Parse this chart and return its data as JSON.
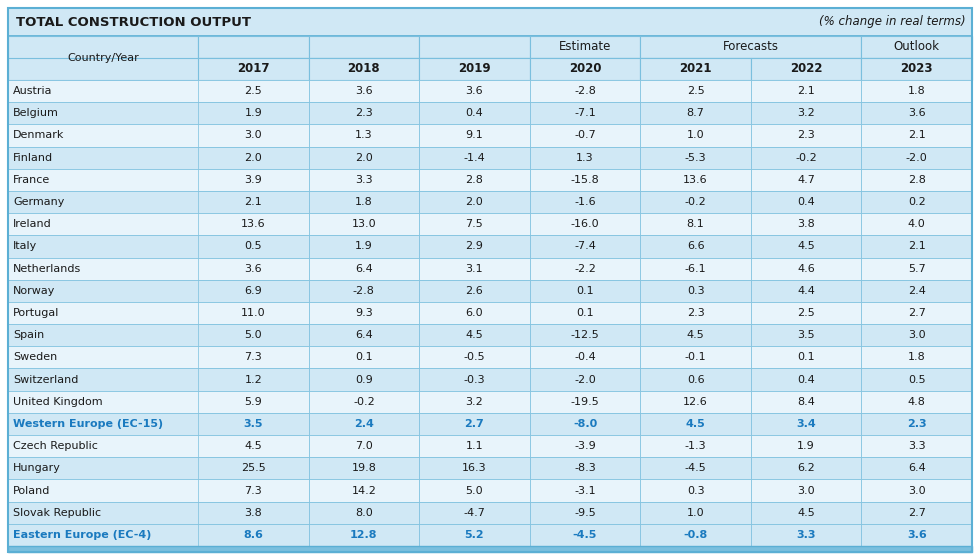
{
  "title_left": "TOTAL CONSTRUCTION OUTPUT",
  "title_right": "(% change in real terms)",
  "years": [
    "2017",
    "2018",
    "2019",
    "2020",
    "2021",
    "2022",
    "2023"
  ],
  "rows": [
    [
      "Austria",
      "2.5",
      "3.6",
      "3.6",
      "-2.8",
      "2.5",
      "2.1",
      "1.8"
    ],
    [
      "Belgium",
      "1.9",
      "2.3",
      "0.4",
      "-7.1",
      "8.7",
      "3.2",
      "3.6"
    ],
    [
      "Denmark",
      "3.0",
      "1.3",
      "9.1",
      "-0.7",
      "1.0",
      "2.3",
      "2.1"
    ],
    [
      "Finland",
      "2.0",
      "2.0",
      "-1.4",
      "1.3",
      "-5.3",
      "-0.2",
      "-2.0"
    ],
    [
      "France",
      "3.9",
      "3.3",
      "2.8",
      "-15.8",
      "13.6",
      "4.7",
      "2.8"
    ],
    [
      "Germany",
      "2.1",
      "1.8",
      "2.0",
      "-1.6",
      "-0.2",
      "0.4",
      "0.2"
    ],
    [
      "Ireland",
      "13.6",
      "13.0",
      "7.5",
      "-16.0",
      "8.1",
      "3.8",
      "4.0"
    ],
    [
      "Italy",
      "0.5",
      "1.9",
      "2.9",
      "-7.4",
      "6.6",
      "4.5",
      "2.1"
    ],
    [
      "Netherlands",
      "3.6",
      "6.4",
      "3.1",
      "-2.2",
      "-6.1",
      "4.6",
      "5.7"
    ],
    [
      "Norway",
      "6.9",
      "-2.8",
      "2.6",
      "0.1",
      "0.3",
      "4.4",
      "2.4"
    ],
    [
      "Portugal",
      "11.0",
      "9.3",
      "6.0",
      "0.1",
      "2.3",
      "2.5",
      "2.7"
    ],
    [
      "Spain",
      "5.0",
      "6.4",
      "4.5",
      "-12.5",
      "4.5",
      "3.5",
      "3.0"
    ],
    [
      "Sweden",
      "7.3",
      "0.1",
      "-0.5",
      "-0.4",
      "-0.1",
      "0.1",
      "1.8"
    ],
    [
      "Switzerland",
      "1.2",
      "0.9",
      "-0.3",
      "-2.0",
      "0.6",
      "0.4",
      "0.5"
    ],
    [
      "United Kingdom",
      "5.9",
      "-0.2",
      "3.2",
      "-19.5",
      "12.6",
      "8.4",
      "4.8"
    ],
    [
      "Western Europe (EC-15)",
      "3.5",
      "2.4",
      "2.7",
      "-8.0",
      "4.5",
      "3.4",
      "2.3"
    ],
    [
      "Czech Republic",
      "4.5",
      "7.0",
      "1.1",
      "-3.9",
      "-1.3",
      "1.9",
      "3.3"
    ],
    [
      "Hungary",
      "25.5",
      "19.8",
      "16.3",
      "-8.3",
      "-4.5",
      "6.2",
      "6.4"
    ],
    [
      "Poland",
      "7.3",
      "14.2",
      "5.0",
      "-3.1",
      "0.3",
      "3.0",
      "3.0"
    ],
    [
      "Slovak Republic",
      "3.8",
      "8.0",
      "-4.7",
      "-9.5",
      "1.0",
      "4.5",
      "2.7"
    ],
    [
      "Eastern Europe (EC-4)",
      "8.6",
      "12.8",
      "5.2",
      "-4.5",
      "-0.8",
      "3.3",
      "3.6"
    ]
  ],
  "highlight_rows": [
    15,
    20
  ],
  "bg_title": "#D0E8F5",
  "bg_header": "#D0E8F5",
  "bg_light": "#E8F4FB",
  "bg_dark": "#D0E8F5",
  "border_color": "#7ABFDE",
  "blue_text": "#1a7abf",
  "title_border": "#5BAFD4",
  "bottom_strip_color": "#7ABFDE"
}
